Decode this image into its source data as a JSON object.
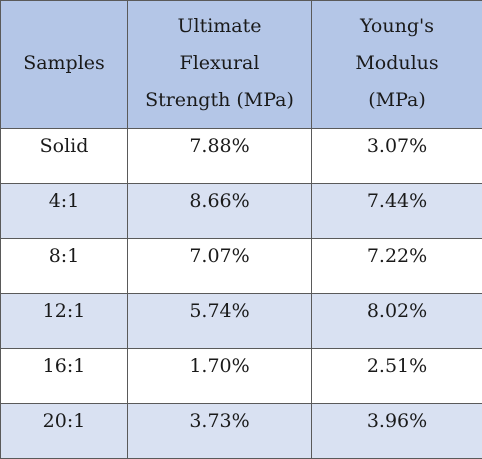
{
  "table": {
    "headers": {
      "samples": "Samples",
      "flexural": [
        "Ultimate",
        "Flexural",
        "Strength (MPa)"
      ],
      "modulus": [
        "Young's",
        "Modulus",
        "(MPa)"
      ]
    },
    "rows": [
      {
        "sample": "Solid",
        "flexural": "7.88%",
        "modulus": "3.07%"
      },
      {
        "sample": "4:1",
        "flexural": "8.66%",
        "modulus": "7.44%"
      },
      {
        "sample": "8:1",
        "flexural": "7.07%",
        "modulus": "7.22%"
      },
      {
        "sample": "12:1",
        "flexural": "5.74%",
        "modulus": "8.02%"
      },
      {
        "sample": "16:1",
        "flexural": "1.70%",
        "modulus": "2.51%"
      },
      {
        "sample": "20:1",
        "flexural": "3.73%",
        "modulus": "3.96%"
      }
    ],
    "colors": {
      "header_bg": "#b4c6e7",
      "band_bg": "#d9e1f2",
      "row_bg": "#ffffff",
      "border": "#5a5a5a"
    }
  }
}
